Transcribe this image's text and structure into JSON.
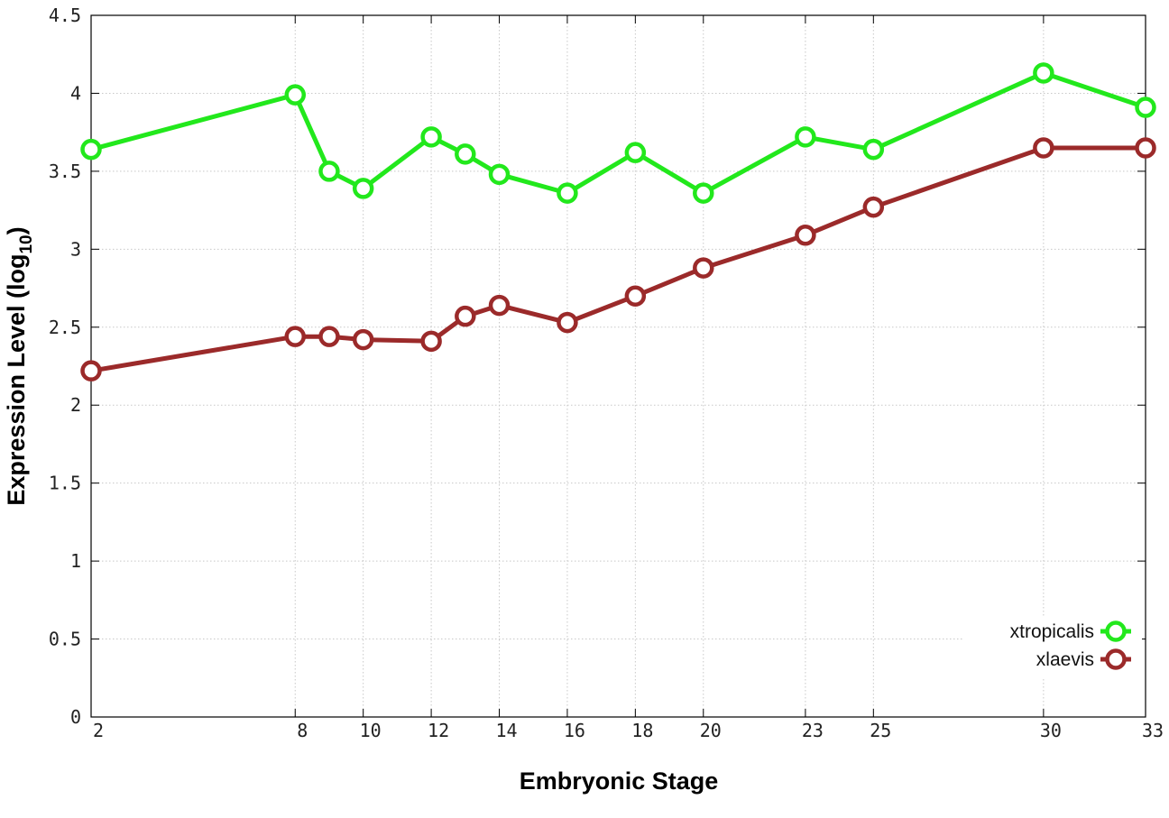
{
  "chart_data": {
    "type": "line",
    "xlabel": "Embryonic Stage",
    "ylabel": "Expression Level (log",
    "ylabel_subscript": "10",
    "ylabel_suffix": ")",
    "x": [
      2,
      8,
      9,
      10,
      12,
      13,
      14,
      16,
      18,
      20,
      23,
      25,
      30,
      33
    ],
    "x_tick_labels": [
      "2",
      "8",
      "10",
      "12",
      "14",
      "16",
      "18",
      "20",
      "23",
      "25",
      "30",
      "33"
    ],
    "y_ticks": [
      "0",
      "0.5",
      "1",
      "1.5",
      "2",
      "2.5",
      "3",
      "3.5",
      "4",
      "4.5"
    ],
    "xlim": [
      2,
      33
    ],
    "ylim": [
      0,
      4.5
    ],
    "grid": true,
    "legend_position": "bottom-right",
    "series": [
      {
        "name": "xtropicalis",
        "color": "#22e81c",
        "values": [
          3.64,
          3.99,
          3.5,
          3.39,
          3.72,
          3.61,
          3.48,
          3.36,
          3.62,
          3.36,
          3.72,
          3.64,
          4.13,
          3.91
        ]
      },
      {
        "name": "xlaevis",
        "color": "#9b2a2a",
        "values": [
          2.22,
          2.44,
          2.44,
          2.42,
          2.41,
          2.57,
          2.64,
          2.53,
          2.7,
          2.88,
          3.09,
          3.27,
          3.65,
          3.65
        ]
      }
    ]
  }
}
